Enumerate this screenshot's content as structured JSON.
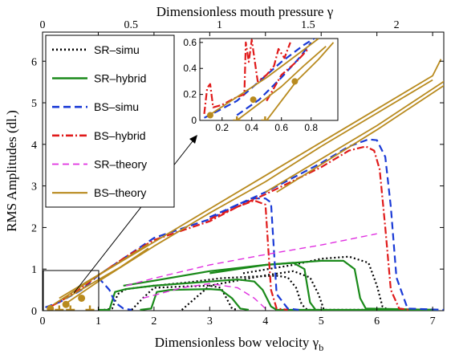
{
  "chart_data": {
    "type": "line",
    "xlabel": "Dimensionless bow velocity γ",
    "xlabel_sub": "b",
    "ylabel": "RMS Amplitudes (dl.)",
    "top_xlabel": "Dimensionless mouth pressure γ",
    "xlim": [
      0,
      7.2
    ],
    "ylim": [
      0,
      6.7
    ],
    "top_xlim": [
      0,
      2.267
    ],
    "x_ticks": [
      0,
      1,
      2,
      3,
      4,
      5,
      6,
      7
    ],
    "y_ticks": [
      0,
      1,
      2,
      3,
      4,
      5,
      6
    ],
    "top_x_ticks": [
      0,
      0.5,
      1,
      1.5,
      2
    ],
    "grid": false,
    "legend_position": "top-left",
    "legend": [
      {
        "label": "SR–simu",
        "color": "#000000",
        "dash": "2,3",
        "width": 2.2
      },
      {
        "label": "SR–hybrid",
        "color": "#1a8a1a",
        "dash": "",
        "width": 2.2
      },
      {
        "label": "BS–simu",
        "color": "#1a3ad6",
        "dash": "9,5",
        "width": 2.2
      },
      {
        "label": "BS–hybrid",
        "color": "#e01a1a",
        "dash": "9,3,2,3",
        "width": 2.2
      },
      {
        "label": "SR–theory",
        "color": "#e030e0",
        "dash": "8,5",
        "width": 1.4
      },
      {
        "label": "BS–theory",
        "color": "#b88a1e",
        "dash": "",
        "width": 1.8
      }
    ],
    "series": [
      {
        "style": 0,
        "points": [
          [
            1.1,
            0.02
          ],
          [
            1.25,
            0.05
          ],
          [
            1.35,
            0.4
          ],
          [
            1.5,
            0.52
          ],
          [
            2,
            0.6
          ],
          [
            2.6,
            0.68
          ],
          [
            3.2,
            0.78
          ],
          [
            3.8,
            0.82
          ],
          [
            4.2,
            0.84
          ],
          [
            4.4,
            0.8
          ],
          [
            4.55,
            0.55
          ],
          [
            4.65,
            0.15
          ],
          [
            4.75,
            0.02
          ],
          [
            7,
            0.02
          ]
        ]
      },
      {
        "style": 0,
        "points": [
          [
            1.6,
            0.02
          ],
          [
            1.8,
            0.3
          ],
          [
            2,
            0.55
          ],
          [
            2.5,
            0.58
          ],
          [
            3,
            0.6
          ],
          [
            3.2,
            0.55
          ],
          [
            3.3,
            0.3
          ],
          [
            3.4,
            0.05
          ],
          [
            3.5,
            0.02
          ]
        ]
      },
      {
        "style": 0,
        "points": [
          [
            2.5,
            0.02
          ],
          [
            3,
            0.6
          ],
          [
            4,
            0.85
          ],
          [
            4.5,
            0.95
          ],
          [
            4.8,
            0.8
          ],
          [
            4.95,
            0.4
          ],
          [
            5.05,
            0.02
          ],
          [
            7,
            0.02
          ]
        ]
      },
      {
        "style": 0,
        "points": [
          [
            3.6,
            0.9
          ],
          [
            4.5,
            1.1
          ],
          [
            5,
            1.25
          ],
          [
            5.5,
            1.3
          ],
          [
            5.85,
            1.15
          ],
          [
            6,
            0.6
          ],
          [
            6.1,
            0.1
          ],
          [
            6.2,
            0.02
          ]
        ]
      },
      {
        "style": 1,
        "points": [
          [
            1,
            0.02
          ],
          [
            1.2,
            0.02
          ],
          [
            1.3,
            0.45
          ],
          [
            1.5,
            0.52
          ],
          [
            2,
            0.6
          ],
          [
            3,
            0.7
          ],
          [
            3.5,
            0.75
          ],
          [
            3.8,
            0.7
          ],
          [
            3.95,
            0.5
          ],
          [
            4.1,
            0.1
          ],
          [
            4.2,
            0.02
          ],
          [
            7,
            0.02
          ]
        ]
      },
      {
        "style": 1,
        "points": [
          [
            1.75,
            0.02
          ],
          [
            1.95,
            0.05
          ],
          [
            2.05,
            0.45
          ],
          [
            2.3,
            0.5
          ],
          [
            3,
            0.52
          ],
          [
            3.2,
            0.5
          ],
          [
            3.4,
            0.3
          ],
          [
            3.55,
            0.05
          ],
          [
            3.7,
            0.02
          ]
        ]
      },
      {
        "style": 1,
        "points": [
          [
            1.45,
            0.6
          ],
          [
            2,
            0.72
          ],
          [
            3,
            0.95
          ],
          [
            4,
            1.1
          ],
          [
            4.5,
            1.15
          ],
          [
            4.7,
            1.0
          ],
          [
            4.8,
            0.2
          ],
          [
            4.9,
            0.02
          ]
        ]
      },
      {
        "style": 1,
        "points": [
          [
            3,
            0.9
          ],
          [
            4,
            1.1
          ],
          [
            5,
            1.2
          ],
          [
            5.4,
            1.2
          ],
          [
            5.6,
            1.0
          ],
          [
            5.7,
            0.3
          ],
          [
            5.8,
            0.05
          ],
          [
            7.1,
            0.02
          ]
        ]
      },
      {
        "style": 2,
        "points": [
          [
            0.05,
            0.08
          ],
          [
            0.3,
            0.2
          ],
          [
            0.7,
            0.5
          ],
          [
            1,
            0.85
          ],
          [
            1.5,
            1.3
          ],
          [
            2,
            1.75
          ],
          [
            3,
            2.2
          ],
          [
            3.5,
            2.55
          ],
          [
            3.8,
            2.7
          ],
          [
            4,
            2.7
          ],
          [
            4.1,
            2.6
          ],
          [
            4.15,
            1.5
          ],
          [
            4.2,
            0.4
          ],
          [
            4.4,
            0.05
          ],
          [
            4.6,
            0.02
          ]
        ]
      },
      {
        "style": 2,
        "points": [
          [
            3,
            2.25
          ],
          [
            4,
            2.85
          ],
          [
            5,
            3.55
          ],
          [
            5.5,
            3.95
          ],
          [
            5.85,
            4.12
          ],
          [
            6,
            4.1
          ],
          [
            6.15,
            3.7
          ],
          [
            6.25,
            2.5
          ],
          [
            6.35,
            0.8
          ],
          [
            6.55,
            0.05
          ],
          [
            7.2,
            0.02
          ]
        ]
      },
      {
        "style": 2,
        "points": [
          [
            1,
            0.8
          ],
          [
            1.2,
            0.5
          ],
          [
            1.3,
            0.2
          ],
          [
            1.45,
            0.05
          ],
          [
            1.6,
            0.02
          ]
        ]
      },
      {
        "style": 3,
        "points": [
          [
            0.15,
            0.1
          ],
          [
            0.35,
            0.25
          ],
          [
            0.6,
            0.45
          ],
          [
            1,
            0.85
          ],
          [
            1.5,
            1.3
          ],
          [
            2,
            1.7
          ],
          [
            3,
            2.15
          ],
          [
            3.5,
            2.5
          ],
          [
            3.8,
            2.65
          ],
          [
            4,
            2.55
          ],
          [
            4.05,
            1.5
          ],
          [
            4.1,
            0.5
          ],
          [
            4.2,
            0.05
          ],
          [
            4.4,
            0.02
          ]
        ]
      },
      {
        "style": 3,
        "points": [
          [
            3,
            2.2
          ],
          [
            4,
            2.8
          ],
          [
            5,
            3.45
          ],
          [
            5.5,
            3.85
          ],
          [
            5.8,
            3.95
          ],
          [
            5.95,
            3.85
          ],
          [
            6.05,
            3.4
          ],
          [
            6.15,
            2.0
          ],
          [
            6.25,
            0.5
          ],
          [
            6.4,
            0.05
          ],
          [
            6.6,
            0.02
          ]
        ]
      },
      {
        "style": 4,
        "points": [
          [
            1.5,
            0.6
          ],
          [
            2,
            0.78
          ],
          [
            3,
            1.1
          ],
          [
            4,
            1.35
          ],
          [
            5,
            1.58
          ],
          [
            6,
            1.85
          ]
        ]
      },
      {
        "style": 4,
        "points": [
          [
            1.8,
            0.3
          ],
          [
            2.5,
            0.55
          ],
          [
            3,
            0.65
          ],
          [
            3.5,
            0.55
          ],
          [
            3.8,
            0.3
          ],
          [
            4,
            0.05
          ]
        ]
      },
      {
        "style": 5,
        "points": [
          [
            0.2,
            0.15
          ],
          [
            0.6,
            0.5
          ],
          [
            1,
            0.85
          ],
          [
            2,
            1.65
          ],
          [
            3,
            2.45
          ],
          [
            4,
            3.25
          ],
          [
            5,
            4.05
          ],
          [
            6,
            4.85
          ],
          [
            7,
            5.65
          ],
          [
            7.15,
            6.05
          ]
        ]
      },
      {
        "style": 5,
        "points": [
          [
            0.45,
            0.2
          ],
          [
            1,
            0.7
          ],
          [
            2,
            1.55
          ],
          [
            3,
            2.35
          ],
          [
            4,
            3.1
          ],
          [
            5,
            3.95
          ],
          [
            6,
            4.75
          ],
          [
            7,
            5.55
          ]
        ]
      },
      {
        "style": 5,
        "points": [
          [
            0.3,
            0.3
          ],
          [
            1.3,
            1.1
          ],
          [
            1.9,
            1.6
          ]
        ]
      },
      {
        "style": 5,
        "points": [
          [
            0.4,
            0.28
          ],
          [
            1.4,
            1.05
          ],
          [
            1.9,
            1.5
          ]
        ]
      },
      {
        "style": 5,
        "points": [
          [
            4,
            2.85
          ],
          [
            6,
            4.45
          ],
          [
            7.3,
            5.6
          ]
        ]
      },
      {
        "style": 5,
        "points": [
          [
            4.2,
            2.85
          ],
          [
            6,
            4.35
          ],
          [
            7.3,
            5.5
          ]
        ]
      }
    ],
    "markers": [
      {
        "type": "circle",
        "color": "#b88a1e",
        "points": [
          [
            0.14,
            0.05
          ],
          [
            0.42,
            0.15
          ],
          [
            0.7,
            0.3
          ]
        ]
      },
      {
        "type": "plus",
        "color": "#b88a1e",
        "points": [
          [
            0.3,
            0.02
          ],
          [
            0.5,
            0.02
          ],
          [
            0.85,
            0.02
          ]
        ]
      }
    ],
    "inset": {
      "xlim": [
        0.05,
        0.98
      ],
      "ylim": [
        0,
        0.63
      ],
      "x_ticks": [
        0.2,
        0.4,
        0.6,
        0.8
      ],
      "y_ticks": [
        0,
        0.2,
        0.4,
        0.6
      ],
      "series": [
        {
          "style": 2,
          "points": [
            [
              0.08,
              0.02
            ],
            [
              0.15,
              0.06
            ],
            [
              0.3,
              0.15
            ],
            [
              0.45,
              0.3
            ],
            [
              0.6,
              0.45
            ],
            [
              0.75,
              0.58
            ],
            [
              0.82,
              0.63
            ]
          ]
        },
        {
          "style": 2,
          "points": [
            [
              0.3,
              0.04
            ],
            [
              0.45,
              0.16
            ],
            [
              0.6,
              0.33
            ],
            [
              0.72,
              0.48
            ],
            [
              0.8,
              0.6
            ]
          ]
        },
        {
          "style": 3,
          "points": [
            [
              0.08,
              0.05
            ],
            [
              0.1,
              0.25
            ],
            [
              0.12,
              0.28
            ],
            [
              0.14,
              0.1
            ],
            [
              0.2,
              0.12
            ],
            [
              0.3,
              0.18
            ],
            [
              0.35,
              0.2
            ],
            [
              0.36,
              0.6
            ],
            [
              0.38,
              0.45
            ],
            [
              0.4,
              0.62
            ],
            [
              0.44,
              0.3
            ],
            [
              0.5,
              0.35
            ],
            [
              0.55,
              0.42
            ],
            [
              0.58,
              0.55
            ],
            [
              0.62,
              0.48
            ],
            [
              0.66,
              0.6
            ]
          ]
        },
        {
          "style": 3,
          "points": [
            [
              0.5,
              0.15
            ],
            [
              0.55,
              0.25
            ],
            [
              0.6,
              0.35
            ],
            [
              0.7,
              0.45
            ],
            [
              0.78,
              0.55
            ]
          ]
        },
        {
          "style": 5,
          "points": [
            [
              0.1,
              0.03
            ],
            [
              0.3,
              0.18
            ],
            [
              0.5,
              0.33
            ],
            [
              0.7,
              0.5
            ],
            [
              0.85,
              0.63
            ]
          ]
        },
        {
          "style": 5,
          "points": [
            [
              0.3,
              0.0
            ],
            [
              0.45,
              0.13
            ],
            [
              0.6,
              0.26
            ],
            [
              0.75,
              0.42
            ],
            [
              0.9,
              0.57
            ]
          ]
        },
        {
          "style": 5,
          "points": [
            [
              0.5,
              0.0
            ],
            [
              0.6,
              0.15
            ],
            [
              0.7,
              0.3
            ],
            [
              0.85,
              0.47
            ],
            [
              0.95,
              0.6
            ]
          ]
        }
      ],
      "markers": [
        {
          "type": "circle",
          "color": "#b88a1e",
          "points": [
            [
              0.12,
              0.04
            ],
            [
              0.41,
              0.16
            ],
            [
              0.69,
              0.3
            ]
          ]
        },
        {
          "type": "plus",
          "color": "#b88a1e",
          "points": [
            [
              0.3,
              0.0
            ],
            [
              0.49,
              0.0
            ]
          ]
        }
      ]
    }
  }
}
